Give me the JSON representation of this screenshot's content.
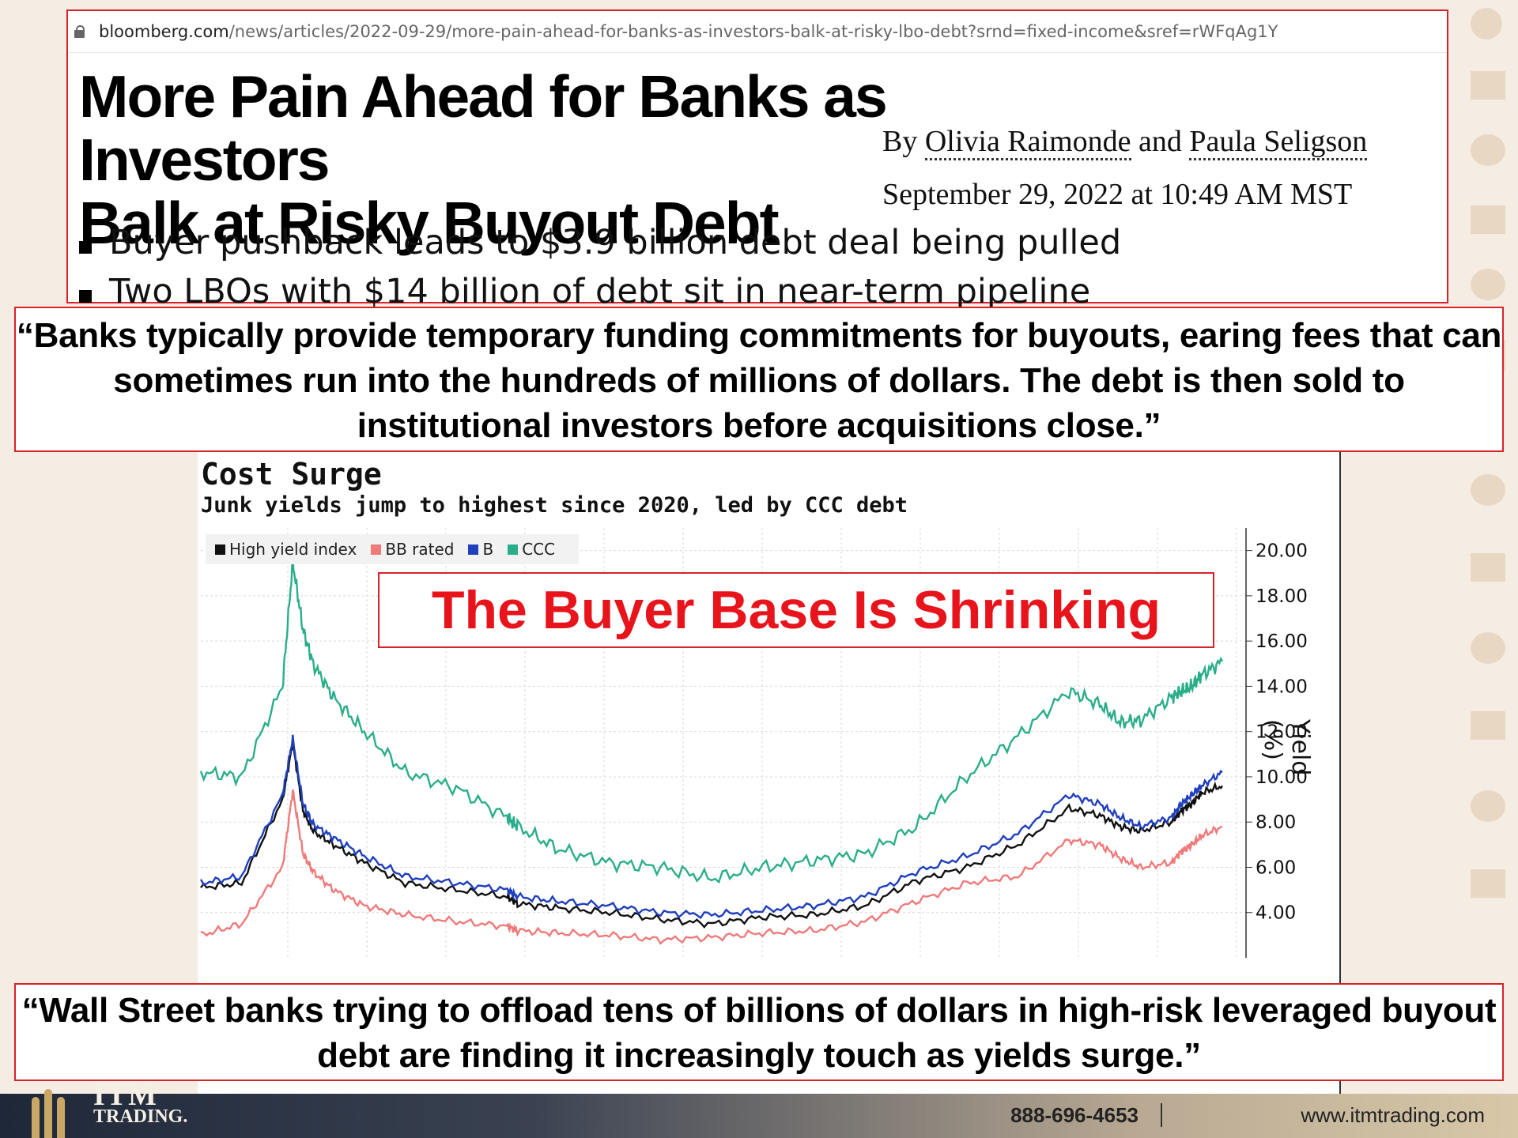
{
  "article": {
    "url_domain": "bloomberg.com",
    "url_path": "/news/articles/2022-09-29/more-pain-ahead-for-banks-as-investors-balk-at-risky-lbo-debt?srnd=fixed-income&sref=rWFqAg1Y",
    "headline_line1": "More Pain Ahead for Banks as Investors",
    "headline_line2": "Balk at Risky Buyout Debt",
    "byline_prefix": "By",
    "author1": "Olivia Raimonde",
    "byline_and": "and",
    "author2": "Paula Seligson",
    "date": "September 29, 2022 at 10:49 AM MST",
    "bullets": [
      "Buyer pushback leads to $3.9 billion debt deal being pulled",
      "Two LBOs with $14 billion of debt sit in near-term pipeline"
    ]
  },
  "quote_top": "“Banks typically provide temporary funding commitments for buyouts, earing fees that can sometimes run into the hundreds of millions of dollars. The debt is then sold to institutional investors before acquisitions close.”",
  "quote_bottom": "“Wall Street banks trying to offload tens of billions of dollars in high-risk leveraged buyout debt are finding it increasingly touch as yields surge.”",
  "overlay_text": "The Buyer Base Is Shrinking",
  "colors": {
    "accent_red": "#e8141c",
    "border_red": "#d6232a"
  },
  "chart_data": {
    "type": "line",
    "title": "Cost Surge",
    "subtitle": "Junk yields jump to highest since 2020, led by CCC debt",
    "ylabel": "Yield (%)",
    "ylim": [
      2.0,
      21.0
    ],
    "yticks": [
      "20.00",
      "18.00",
      "16.00",
      "14.00",
      "12.00",
      "10.00",
      "8.00",
      "6.00",
      "4.00"
    ],
    "legend_position": "top-left",
    "grid": true,
    "x": [
      0,
      4,
      8,
      9,
      10,
      11,
      13,
      16,
      20,
      25,
      30,
      31,
      35,
      40,
      45,
      50,
      55,
      60,
      65,
      70,
      75,
      80,
      85,
      88,
      90,
      92,
      95,
      96,
      97,
      98,
      100
    ],
    "series": [
      {
        "name": "High yield index",
        "color": "#111111",
        "values": [
          5.1,
          5.3,
          9.0,
          11.5,
          8.5,
          7.6,
          7.0,
          6.2,
          5.3,
          5.0,
          4.7,
          4.4,
          4.2,
          4.0,
          3.7,
          3.5,
          3.8,
          3.9,
          4.3,
          5.4,
          6.0,
          7.0,
          8.6,
          8.3,
          7.8,
          7.6,
          8.0,
          8.5,
          8.8,
          9.3,
          9.6
        ]
      },
      {
        "name": "BB rated",
        "color": "#ef7a7a",
        "values": [
          3.0,
          3.5,
          6.0,
          9.4,
          6.6,
          5.8,
          5.0,
          4.3,
          3.9,
          3.6,
          3.4,
          3.2,
          3.1,
          3.0,
          2.8,
          2.9,
          3.1,
          3.2,
          3.6,
          4.5,
          5.3,
          5.6,
          7.2,
          7.0,
          6.4,
          6.0,
          6.2,
          6.7,
          7.0,
          7.4,
          7.8
        ]
      },
      {
        "name": "B",
        "color": "#1f3fbf",
        "values": [
          5.3,
          5.6,
          9.2,
          11.7,
          8.8,
          7.9,
          7.3,
          6.5,
          5.6,
          5.3,
          5.0,
          4.7,
          4.5,
          4.3,
          4.0,
          3.9,
          4.1,
          4.3,
          4.7,
          5.8,
          6.5,
          7.5,
          9.2,
          8.8,
          8.2,
          7.8,
          8.2,
          8.8,
          9.2,
          9.6,
          10.2
        ]
      },
      {
        "name": "CCC",
        "color": "#2aae8a",
        "values": [
          10.2,
          10.0,
          14.0,
          19.5,
          16.5,
          15.0,
          13.5,
          12.0,
          10.2,
          9.5,
          8.2,
          7.8,
          6.8,
          6.2,
          6.0,
          5.5,
          6.0,
          6.3,
          6.6,
          7.8,
          10.0,
          11.8,
          13.8,
          13.2,
          12.4,
          12.5,
          13.5,
          13.8,
          14.0,
          14.5,
          15.1
        ]
      }
    ]
  }
}
